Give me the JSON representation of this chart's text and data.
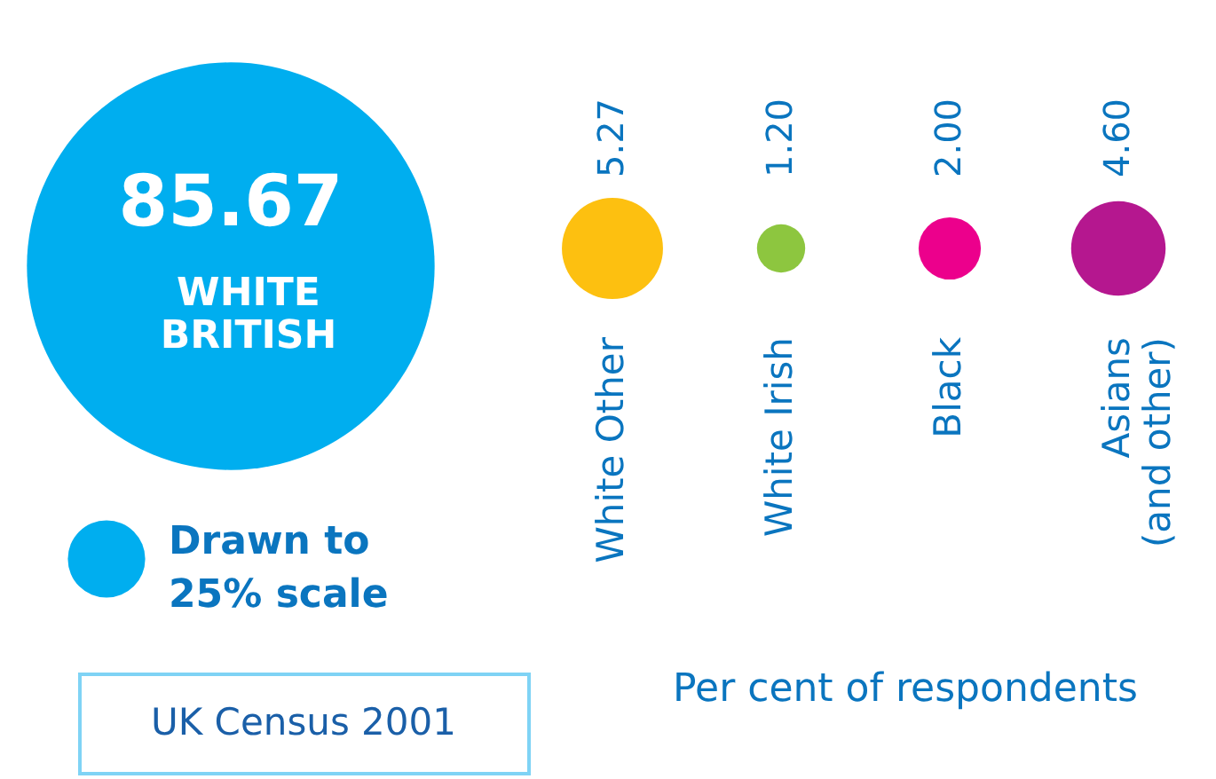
{
  "chart_data": {
    "type": "other",
    "categories": [
      "WHITE\nBRITISH",
      "White Other",
      "White Irish",
      "Black",
      "Asians\n(and other)"
    ],
    "values": [
      85.67,
      5.27,
      1.2,
      2.0,
      4.6
    ],
    "colors": [
      "#00aeef",
      "#fdc010",
      "#8dc63f",
      "#ec008c",
      "#b5178f"
    ],
    "value_labels": [
      "85.67",
      "5.27",
      "1.20",
      "2.00",
      "4.60"
    ],
    "xlabel": "Per cent of respondents",
    "annotations": [
      "Drawn to\n25% scale",
      "UK Census 2001"
    ]
  }
}
